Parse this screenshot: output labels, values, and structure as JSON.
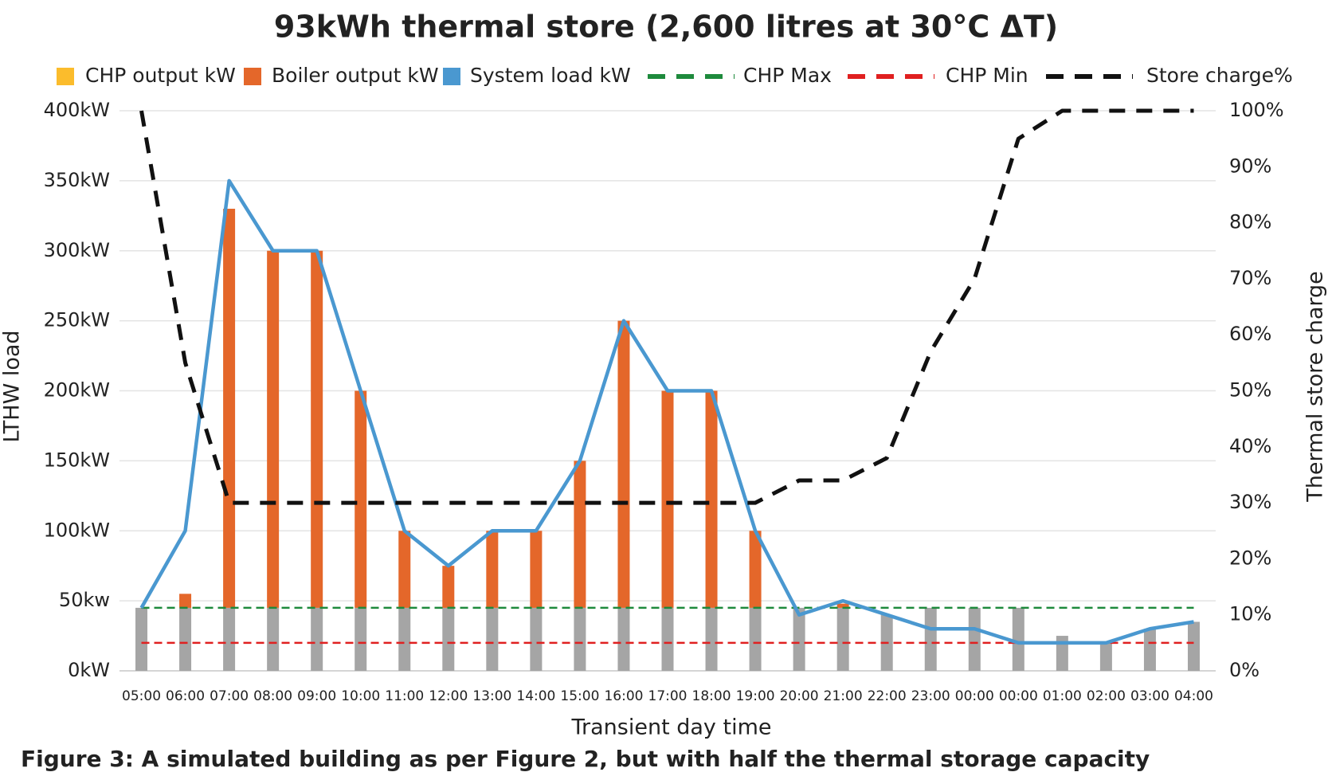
{
  "chart_data": {
    "type": "bar",
    "title": "93kWh thermal store (2,600 litres at 30°C ΔT)",
    "caption": "Figure 3: A simulated building as per Figure 2, but with half the thermal storage capacity",
    "xlabel": "Transient day time",
    "ylabel": "LTHW load",
    "y2label": "Thermal store charge",
    "categories": [
      "05:00",
      "06:00",
      "07:00",
      "08:00",
      "09:00",
      "10:00",
      "11:00",
      "12:00",
      "13:00",
      "14:00",
      "15:00",
      "16:00",
      "17:00",
      "18:00",
      "19:00",
      "20:00",
      "21:00",
      "22:00",
      "23:00",
      "00:00",
      "00:00",
      "01:00",
      "02:00",
      "03:00",
      "04:00"
    ],
    "series": [
      {
        "name": "CHP output kW",
        "kind": "bar",
        "color": "#a5a5a5",
        "legend_color": "#fbbc2c",
        "values": [
          45,
          45,
          45,
          45,
          45,
          45,
          45,
          45,
          45,
          45,
          45,
          45,
          45,
          45,
          45,
          45,
          45,
          40,
          45,
          45,
          45,
          25,
          20,
          30,
          35
        ]
      },
      {
        "name": "Boiler output kW",
        "kind": "bar",
        "stacked": true,
        "color": "#e4672a",
        "values": [
          0,
          10,
          285,
          255,
          255,
          155,
          55,
          30,
          55,
          55,
          105,
          205,
          155,
          155,
          55,
          0,
          3,
          0,
          0,
          0,
          0,
          0,
          0,
          0,
          0
        ]
      },
      {
        "name": "System load kW",
        "kind": "line",
        "color": "#4a98d0",
        "values": [
          45,
          100,
          350,
          300,
          300,
          200,
          100,
          75,
          100,
          100,
          150,
          250,
          200,
          200,
          100,
          40,
          50,
          40,
          30,
          30,
          20,
          20,
          20,
          30,
          35
        ]
      },
      {
        "name": "Store charge%",
        "kind": "line",
        "axis": "y2",
        "dashed": true,
        "color": "#111111",
        "values": [
          100,
          55,
          30,
          30,
          30,
          30,
          30,
          30,
          30,
          30,
          30,
          30,
          30,
          30,
          30,
          34,
          34,
          38,
          57,
          70,
          95,
          100,
          100,
          100,
          100
        ]
      }
    ],
    "reference_lines": [
      {
        "name": "CHP Max",
        "value": 45,
        "color": "#1e8a3c"
      },
      {
        "name": "CHP Min",
        "value": 20,
        "color": "#e02020"
      }
    ],
    "ylim": [
      0,
      400
    ],
    "yticks": [
      {
        "value": 0,
        "label": "0kW"
      },
      {
        "value": 50,
        "label": "50kw"
      },
      {
        "value": 100,
        "label": "100kW"
      },
      {
        "value": 150,
        "label": "150kW"
      },
      {
        "value": 200,
        "label": "200kW"
      },
      {
        "value": 250,
        "label": "250kW"
      },
      {
        "value": 300,
        "label": "300kW"
      },
      {
        "value": 350,
        "label": "350kW"
      },
      {
        "value": 400,
        "label": "400kW"
      }
    ],
    "y2lim": [
      0,
      100
    ],
    "y2ticks": [
      {
        "value": 0,
        "label": "0%"
      },
      {
        "value": 10,
        "label": "10%"
      },
      {
        "value": 20,
        "label": "20%"
      },
      {
        "value": 30,
        "label": "30%"
      },
      {
        "value": 40,
        "label": "40%"
      },
      {
        "value": 50,
        "label": "50%"
      },
      {
        "value": 60,
        "label": "60%"
      },
      {
        "value": 70,
        "label": "70%"
      },
      {
        "value": 80,
        "label": "80%"
      },
      {
        "value": 90,
        "label": "90%"
      },
      {
        "value": 100,
        "label": "100%"
      }
    ],
    "grid": true
  }
}
